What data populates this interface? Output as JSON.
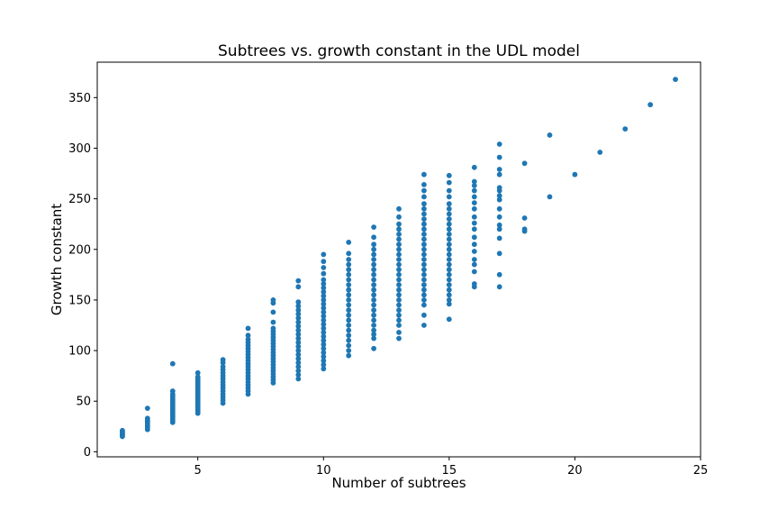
{
  "chart_data": {
    "type": "scatter",
    "title": "Subtrees vs. growth constant in the UDL model",
    "xlabel": "Number of subtrees",
    "ylabel": "Growth constant",
    "xlim": [
      1.0,
      25.0
    ],
    "ylim": [
      -5,
      385
    ],
    "xticks": [
      5,
      10,
      15,
      20,
      25
    ],
    "yticks": [
      0,
      50,
      100,
      150,
      200,
      250,
      300,
      350
    ],
    "grid": false,
    "legend": "none",
    "marker_color": "#1f77b4",
    "groups": [
      {
        "x": 2,
        "y": [
          15,
          16,
          17,
          18,
          19,
          20,
          21
        ]
      },
      {
        "x": 3,
        "y": [
          22,
          24,
          26,
          28,
          30,
          31,
          33,
          43
        ]
      },
      {
        "x": 4,
        "y": [
          29,
          31,
          33,
          35,
          37,
          39,
          41,
          43,
          45,
          47,
          49,
          51,
          53,
          55,
          57,
          60,
          87
        ]
      },
      {
        "x": 5,
        "y": [
          38,
          40,
          42,
          44,
          46,
          48,
          50,
          52,
          54,
          56,
          58,
          60,
          62,
          64,
          66,
          68,
          70,
          72,
          74,
          78
        ]
      },
      {
        "x": 6,
        "y": [
          48,
          51,
          54,
          57,
          60,
          63,
          66,
          69,
          72,
          75,
          78,
          81,
          84,
          88,
          91
        ]
      },
      {
        "x": 7,
        "y": [
          57,
          60,
          63,
          66,
          69,
          72,
          75,
          78,
          81,
          84,
          87,
          90,
          93,
          96,
          99,
          102,
          105,
          108,
          111,
          115,
          122
        ]
      },
      {
        "x": 8,
        "y": [
          68,
          71,
          74,
          77,
          80,
          83,
          86,
          89,
          92,
          95,
          98,
          101,
          104,
          107,
          110,
          113,
          116,
          119,
          122,
          128,
          138,
          147,
          150
        ]
      },
      {
        "x": 9,
        "y": [
          72,
          76,
          80,
          84,
          88,
          92,
          96,
          100,
          104,
          108,
          112,
          116,
          120,
          124,
          128,
          132,
          136,
          140,
          144,
          148,
          163,
          169
        ]
      },
      {
        "x": 10,
        "y": [
          82,
          86,
          90,
          94,
          98,
          102,
          106,
          110,
          114,
          118,
          122,
          126,
          130,
          134,
          138,
          142,
          146,
          150,
          154,
          158,
          162,
          166,
          170,
          176,
          182,
          188,
          195
        ]
      },
      {
        "x": 11,
        "y": [
          95,
          100,
          105,
          110,
          115,
          120,
          125,
          130,
          135,
          140,
          145,
          150,
          155,
          160,
          165,
          170,
          175,
          180,
          185,
          190,
          196,
          207
        ]
      },
      {
        "x": 12,
        "y": [
          102,
          112,
          116,
          120,
          125,
          130,
          135,
          140,
          145,
          150,
          155,
          160,
          165,
          170,
          175,
          180,
          185,
          190,
          195,
          200,
          205,
          212,
          222
        ]
      },
      {
        "x": 13,
        "y": [
          112,
          118,
          125,
          130,
          135,
          140,
          145,
          150,
          155,
          160,
          165,
          170,
          175,
          180,
          185,
          190,
          195,
          200,
          205,
          210,
          215,
          220,
          225,
          232,
          240
        ]
      },
      {
        "x": 14,
        "y": [
          125,
          135,
          145,
          150,
          155,
          160,
          165,
          170,
          175,
          180,
          185,
          190,
          195,
          200,
          205,
          210,
          215,
          220,
          225,
          230,
          235,
          240,
          245,
          252,
          258,
          264,
          274
        ]
      },
      {
        "x": 15,
        "y": [
          131,
          146,
          150,
          155,
          160,
          165,
          170,
          175,
          180,
          185,
          190,
          195,
          200,
          205,
          210,
          215,
          220,
          225,
          230,
          235,
          240,
          245,
          252,
          258,
          266,
          273
        ]
      },
      {
        "x": 16,
        "y": [
          163,
          166,
          178,
          185,
          190,
          198,
          205,
          212,
          220,
          226,
          232,
          240,
          246,
          252,
          258,
          263,
          267,
          281
        ]
      },
      {
        "x": 17,
        "y": [
          163,
          175,
          196,
          211,
          220,
          224,
          232,
          240,
          249,
          253,
          258,
          261,
          274,
          279,
          291,
          304
        ]
      },
      {
        "x": 18,
        "y": [
          218,
          220,
          231,
          285
        ]
      },
      {
        "x": 19,
        "y": [
          252,
          313
        ]
      },
      {
        "x": 20,
        "y": [
          274
        ]
      },
      {
        "x": 21,
        "y": [
          296
        ]
      },
      {
        "x": 22,
        "y": [
          319
        ]
      },
      {
        "x": 23,
        "y": [
          343
        ]
      },
      {
        "x": 24,
        "y": [
          368
        ]
      }
    ]
  }
}
